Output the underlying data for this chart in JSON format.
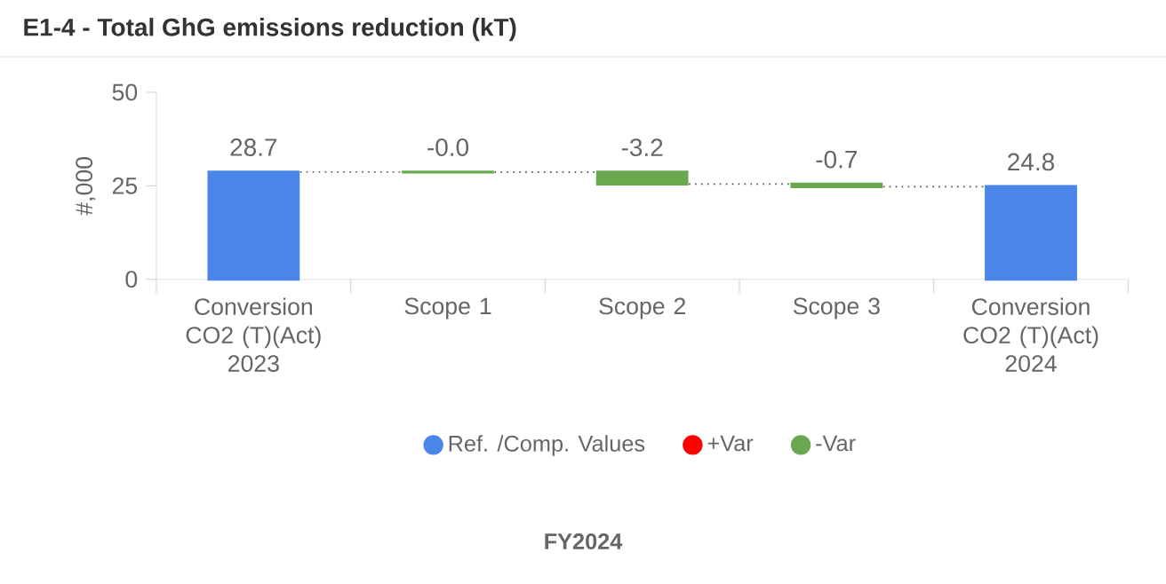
{
  "chart_data": {
    "type": "bar",
    "title": "E1-4 - Total GhG emissions reduction (kT)",
    "ylabel": "#,000",
    "categories": [
      "Conversion CO2 (T)(Act) 2023",
      "Scope 1",
      "Scope 2",
      "Scope 3",
      "Conversion CO2 (T)(Act) 2024"
    ],
    "series": [
      {
        "name": "Ref. /Comp. Values",
        "color": "#4a86e8",
        "values": [
          28.7,
          null,
          null,
          null,
          24.8
        ],
        "value_labels": [
          "28.7",
          null,
          null,
          null,
          "24.8"
        ]
      },
      {
        "name": "+Var",
        "color": "#ff0000",
        "values": [
          null,
          null,
          null,
          null,
          null
        ]
      },
      {
        "name": "-Var",
        "color": "#6aa84f",
        "base": [
          null,
          28.7,
          28.66,
          25.46,
          null
        ],
        "values": [
          null,
          -0.04,
          -3.2,
          -0.7,
          null
        ],
        "value_labels": [
          null,
          "-0.0",
          "-3.2",
          "-0.7",
          null
        ]
      }
    ],
    "ylim": [
      0,
      50
    ],
    "yticks": [
      0,
      25,
      50
    ],
    "legend": "bottom",
    "grid": false,
    "annotations": [
      "FY2024"
    ]
  }
}
